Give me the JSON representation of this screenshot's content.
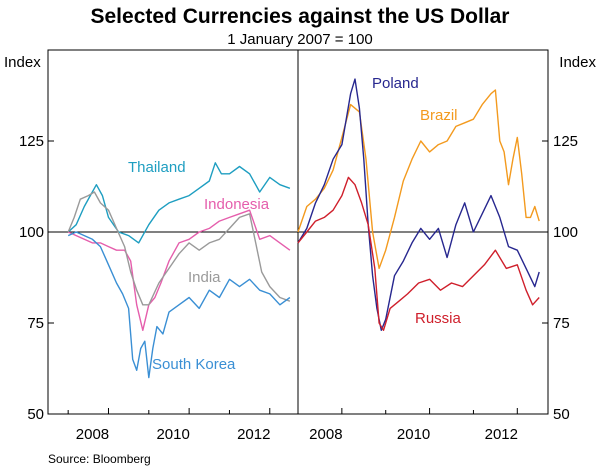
{
  "chart_data": {
    "title": "Selected Currencies against the US Dollar",
    "subtitle": "1 January 2007 = 100",
    "source": "Source: Bloomberg",
    "y_unit_left": "Index",
    "y_unit_right": "Index",
    "ylim": [
      50,
      150
    ],
    "yticks": [
      50,
      75,
      100,
      125
    ],
    "reference_line": 100,
    "grid": false,
    "charts": [
      {
        "type": "line",
        "xlim": [
          2006.5,
          2012.7
        ],
        "xticks": [
          2008,
          2010,
          2012
        ],
        "series": [
          {
            "name": "Thailand",
            "color": "#1e9ec1",
            "x": [
              2007.0,
              2007.2,
              2007.4,
              2007.55,
              2007.7,
              2007.85,
              2008.0,
              2008.25,
              2008.5,
              2008.75,
              2009.0,
              2009.25,
              2009.5,
              2009.75,
              2010.0,
              2010.25,
              2010.5,
              2010.65,
              2010.8,
              2011.0,
              2011.25,
              2011.5,
              2011.75,
              2012.0,
              2012.25,
              2012.5
            ],
            "y": [
              100,
              102,
              107,
              110,
              113,
              110,
              104,
              100,
              99,
              97,
              102,
              106,
              108,
              109,
              110,
              112,
              114,
              119,
              116,
              116,
              118,
              116,
              111,
              115,
              113,
              112
            ]
          },
          {
            "name": "Indonesia",
            "color": "#e55eac",
            "x": [
              2007.0,
              2007.2,
              2007.4,
              2007.6,
              2007.8,
              2008.0,
              2008.2,
              2008.4,
              2008.55,
              2008.7,
              2008.85,
              2009.0,
              2009.15,
              2009.3,
              2009.5,
              2009.75,
              2010.0,
              2010.25,
              2010.5,
              2010.75,
              2011.0,
              2011.25,
              2011.5,
              2011.75,
              2012.0,
              2012.25,
              2012.5
            ],
            "y": [
              100,
              99,
              98,
              97,
              97,
              96,
              95,
              95,
              92,
              80,
              73,
              80,
              82,
              86,
              92,
              97,
              98,
              100,
              101,
              103,
              104,
              105,
              106,
              98,
              99,
              97,
              95
            ]
          },
          {
            "name": "India",
            "color": "#9a9a9a",
            "x": [
              2007.0,
              2007.15,
              2007.3,
              2007.5,
              2007.65,
              2007.8,
              2008.0,
              2008.2,
              2008.4,
              2008.55,
              2008.7,
              2008.85,
              2009.0,
              2009.25,
              2009.5,
              2009.75,
              2010.0,
              2010.25,
              2010.5,
              2010.75,
              2011.0,
              2011.25,
              2011.5,
              2011.65,
              2011.8,
              2012.0,
              2012.25,
              2012.5
            ],
            "y": [
              100,
              104,
              109,
              110,
              111,
              108,
              106,
              101,
              96,
              89,
              84,
              80,
              80,
              86,
              90,
              94,
              97,
              95,
              97,
              98,
              101,
              104,
              105,
              97,
              89,
              85,
              82,
              81
            ]
          },
          {
            "name": "South Korea",
            "color": "#3a8fd4",
            "x": [
              2007.0,
              2007.2,
              2007.4,
              2007.6,
              2007.8,
              2008.0,
              2008.2,
              2008.35,
              2008.5,
              2008.6,
              2008.7,
              2008.8,
              2008.9,
              2009.0,
              2009.1,
              2009.2,
              2009.35,
              2009.5,
              2009.75,
              2010.0,
              2010.25,
              2010.5,
              2010.75,
              2011.0,
              2011.25,
              2011.5,
              2011.75,
              2012.0,
              2012.25,
              2012.5
            ],
            "y": [
              99,
              100,
              99,
              98,
              96,
              91,
              86,
              83,
              79,
              65,
              62,
              68,
              70,
              60,
              68,
              74,
              72,
              78,
              80,
              82,
              79,
              84,
              82,
              87,
              85,
              87,
              84,
              83,
              80,
              82
            ]
          }
        ]
      },
      {
        "type": "line",
        "xlim": [
          2007.0,
          2012.7
        ],
        "xticks": [
          2008,
          2010,
          2012
        ],
        "series": [
          {
            "name": "Brazil",
            "color": "#f39a1e",
            "x": [
              2007.0,
              2007.2,
              2007.4,
              2007.6,
              2007.8,
              2008.0,
              2008.2,
              2008.4,
              2008.55,
              2008.7,
              2008.85,
              2009.0,
              2009.2,
              2009.4,
              2009.6,
              2009.8,
              2010.0,
              2010.2,
              2010.4,
              2010.6,
              2010.8,
              2011.0,
              2011.2,
              2011.4,
              2011.5,
              2011.6,
              2011.7,
              2011.8,
              2011.9,
              2012.0,
              2012.1,
              2012.2,
              2012.3,
              2012.4,
              2012.5
            ],
            "y": [
              100,
              107,
              109,
              112,
              117,
              126,
              135,
              133,
              120,
              100,
              90,
              95,
              104,
              114,
              120,
              125,
              122,
              124,
              125,
              129,
              130,
              131,
              135,
              138,
              139,
              125,
              122,
              113,
              120,
              126,
              116,
              104,
              104,
              107,
              103
            ]
          },
          {
            "name": "Poland",
            "color": "#27278f",
            "x": [
              2007.0,
              2007.2,
              2007.4,
              2007.6,
              2007.8,
              2008.0,
              2008.2,
              2008.3,
              2008.4,
              2008.5,
              2008.6,
              2008.7,
              2008.8,
              2008.9,
              2009.0,
              2009.2,
              2009.4,
              2009.6,
              2009.8,
              2010.0,
              2010.2,
              2010.4,
              2010.6,
              2010.8,
              2011.0,
              2011.2,
              2011.4,
              2011.6,
              2011.8,
              2012.0,
              2012.2,
              2012.4,
              2012.5
            ],
            "y": [
              97,
              101,
              108,
              113,
              120,
              124,
              138,
              142,
              134,
              120,
              102,
              88,
              79,
              73,
              76,
              88,
              92,
              97,
              101,
              98,
              101,
              93,
              102,
              108,
              100,
              105,
              110,
              104,
              96,
              95,
              90,
              85,
              89
            ]
          },
          {
            "name": "Russia",
            "color": "#cf1f2b",
            "x": [
              2007.0,
              2007.2,
              2007.4,
              2007.6,
              2007.8,
              2008.0,
              2008.15,
              2008.3,
              2008.45,
              2008.6,
              2008.75,
              2008.85,
              2008.95,
              2009.1,
              2009.3,
              2009.5,
              2009.75,
              2010.0,
              2010.25,
              2010.5,
              2010.75,
              2011.0,
              2011.25,
              2011.5,
              2011.75,
              2012.0,
              2012.2,
              2012.35,
              2012.5
            ],
            "y": [
              97,
              100,
              103,
              104,
              106,
              110,
              115,
              113,
              108,
              102,
              90,
              75,
              73,
              79,
              81,
              83,
              86,
              87,
              84,
              86,
              85,
              88,
              91,
              95,
              90,
              91,
              84,
              80,
              82
            ]
          }
        ]
      }
    ]
  }
}
